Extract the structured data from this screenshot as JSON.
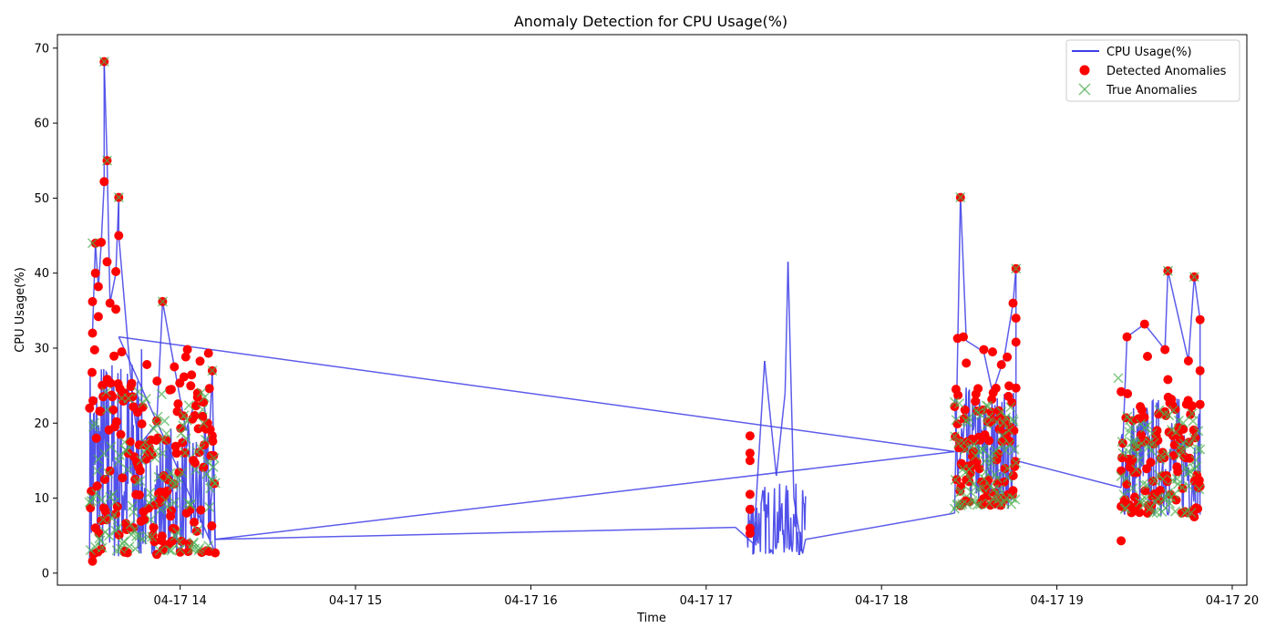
{
  "chart_data": {
    "type": "line",
    "title": "Anomaly Detection for CPU Usage(%)",
    "xlabel": "Time",
    "ylabel": "CPU Usage(%)",
    "xlim": [
      "2024-04-17 13:18",
      "2024-04-17 20:05"
    ],
    "ylim": [
      -1.6,
      71.8
    ],
    "x_ticks": [
      "04-17 14",
      "04-17 15",
      "04-17 16",
      "04-17 17",
      "04-17 18",
      "04-17 19",
      "04-17 20"
    ],
    "x_tick_times": [
      "2024-04-17 14:00",
      "2024-04-17 15:00",
      "2024-04-17 16:00",
      "2024-04-17 17:00",
      "2024-04-17 18:00",
      "2024-04-17 19:00",
      "2024-04-17 20:00"
    ],
    "y_ticks": [
      0,
      10,
      20,
      30,
      40,
      50,
      60,
      70
    ],
    "grid": false,
    "legend_position": "top-right",
    "legend": [
      "CPU Usage(%)",
      "Detected Anomalies",
      "True Anomalies"
    ],
    "colors": {
      "line": "#3f3fe8",
      "detected": "#ff0000",
      "true_marker": "#4caf50"
    },
    "series": [
      {
        "name": "CPU Usage(%)",
        "style": "line",
        "points": [
          [
            "2024-04-17 13:30",
            32.0
          ],
          [
            "2024-04-17 13:31",
            44.0
          ],
          [
            "2024-04-17 13:32",
            38.0
          ],
          [
            "2024-04-17 13:33",
            44.0
          ],
          [
            "2024-04-17 13:34",
            52.0
          ],
          [
            "2024-04-17 13:34",
            68.2
          ],
          [
            "2024-04-17 13:35",
            55.0
          ],
          [
            "2024-04-17 13:36",
            36.0
          ],
          [
            "2024-04-17 13:38",
            40.0
          ],
          [
            "2024-04-17 13:39",
            50.0
          ],
          [
            "2024-04-17 13:39",
            45.0
          ],
          [
            "2024-04-17 13:44",
            22.0
          ],
          [
            "2024-04-17 13:46",
            17.0
          ],
          [
            "2024-04-17 13:52",
            20.0
          ],
          [
            "2024-04-17 13:54",
            36.2
          ],
          [
            "2024-04-17 13:58",
            27.5
          ],
          [
            "2024-04-17 14:02",
            19.0
          ],
          [
            "2024-04-17 14:06",
            24.0
          ],
          [
            "2024-04-17 14:08",
            22.8
          ],
          [
            "2024-04-17 14:10",
            18.2
          ],
          [
            "2024-04-17 14:11",
            27.0
          ],
          [
            "2024-04-17 14:12",
            2.8
          ],
          [
            "2024-04-17 13:39",
            31.5
          ],
          [
            "2024-04-17 18:25",
            16.2
          ],
          [
            "2024-04-17 14:12",
            4.5
          ],
          [
            "2024-04-17 17:10",
            6.1
          ],
          [
            "2024-04-17 17:16",
            4.0
          ],
          [
            "2024-04-17 17:16",
            2.5
          ],
          [
            "2024-04-17 17:20",
            28.3
          ],
          [
            "2024-04-17 17:24",
            13.0
          ],
          [
            "2024-04-17 17:27",
            24.0
          ],
          [
            "2024-04-17 17:28",
            41.5
          ],
          [
            "2024-04-17 17:30",
            10.0
          ],
          [
            "2024-04-17 17:33",
            2.6
          ],
          [
            "2024-04-17 17:34",
            4.5
          ],
          [
            "2024-04-17 18:25",
            8.0
          ],
          [
            "2024-04-17 18:27",
            50.2
          ],
          [
            "2024-04-17 18:29",
            31.0
          ],
          [
            "2024-04-17 18:35",
            29.5
          ],
          [
            "2024-04-17 18:38",
            24.0
          ],
          [
            "2024-04-17 18:42",
            28.8
          ],
          [
            "2024-04-17 18:45",
            36.0
          ],
          [
            "2024-04-17 18:46",
            40.6
          ],
          [
            "2024-04-17 18:46",
            15.0
          ],
          [
            "2024-04-17 19:22",
            11.4
          ],
          [
            "2024-04-17 19:24",
            31.5
          ],
          [
            "2024-04-17 19:30",
            33.2
          ],
          [
            "2024-04-17 19:37",
            29.8
          ],
          [
            "2024-04-17 19:38",
            40.3
          ],
          [
            "2024-04-17 19:45",
            28.3
          ],
          [
            "2024-04-17 19:47",
            39.5
          ],
          [
            "2024-04-17 19:49",
            33.8
          ],
          [
            "2024-04-17 19:49",
            10.5
          ]
        ],
        "dense_segments": [
          {
            "start": "2024-04-17 13:29",
            "end": "2024-04-17 13:47",
            "low": 1.6,
            "high": 30,
            "samples": 90
          },
          {
            "start": "2024-04-17 13:47",
            "end": "2024-04-17 14:12",
            "low": 2.5,
            "high": 20,
            "samples": 90
          },
          {
            "start": "2024-04-17 17:14",
            "end": "2024-04-17 17:34",
            "low": 2.5,
            "high": 12,
            "samples": 80
          },
          {
            "start": "2024-04-17 18:25",
            "end": "2024-04-17 18:46",
            "low": 8.5,
            "high": 25,
            "samples": 80
          },
          {
            "start": "2024-04-17 19:22",
            "end": "2024-04-17 19:49",
            "low": 7.5,
            "high": 24,
            "samples": 90
          }
        ]
      },
      {
        "name": "Detected Anomalies",
        "style": "scatter",
        "points": [
          [
            "2024-04-17 13:30",
            32.0
          ],
          [
            "2024-04-17 13:30",
            36.2
          ],
          [
            "2024-04-17 13:31",
            44.0
          ],
          [
            "2024-04-17 13:31",
            40.0
          ],
          [
            "2024-04-17 13:32",
            38.2
          ],
          [
            "2024-04-17 13:32",
            34.2
          ],
          [
            "2024-04-17 13:33",
            44.1
          ],
          [
            "2024-04-17 13:34",
            68.2
          ],
          [
            "2024-04-17 13:34",
            52.2
          ],
          [
            "2024-04-17 13:35",
            55.0
          ],
          [
            "2024-04-17 13:35",
            41.5
          ],
          [
            "2024-04-17 13:36",
            36.0
          ],
          [
            "2024-04-17 13:38",
            40.2
          ],
          [
            "2024-04-17 13:38",
            35.2
          ],
          [
            "2024-04-17 13:39",
            50.1
          ],
          [
            "2024-04-17 13:39",
            45.0
          ],
          [
            "2024-04-17 13:40",
            29.5
          ],
          [
            "2024-04-17 13:44",
            22.2
          ],
          [
            "2024-04-17 13:46",
            17.1
          ],
          [
            "2024-04-17 13:54",
            36.2
          ],
          [
            "2024-04-17 13:52",
            20.3
          ],
          [
            "2024-04-17 13:58",
            27.5
          ],
          [
            "2024-04-17 13:57",
            24.5
          ],
          [
            "2024-04-17 14:05",
            21.0
          ],
          [
            "2024-04-17 14:06",
            24.0
          ],
          [
            "2024-04-17 14:08",
            22.8
          ],
          [
            "2024-04-17 14:11",
            27.0
          ],
          [
            "2024-04-17 14:11",
            18.3
          ],
          [
            "2024-04-17 13:30",
            1.6
          ],
          [
            "2024-04-17 13:33",
            3.2
          ],
          [
            "2024-04-17 13:41",
            2.8
          ],
          [
            "2024-04-17 13:52",
            2.5
          ],
          [
            "2024-04-17 14:00",
            2.8
          ],
          [
            "2024-04-17 14:10",
            2.9
          ],
          [
            "2024-04-17 17:15",
            18.3
          ],
          [
            "2024-04-17 17:15",
            16.0
          ],
          [
            "2024-04-17 17:15",
            15.0
          ],
          [
            "2024-04-17 17:15",
            10.5
          ],
          [
            "2024-04-17 17:15",
            8.5
          ],
          [
            "2024-04-17 17:15",
            6.0
          ],
          [
            "2024-04-17 17:15",
            5.3
          ],
          [
            "2024-04-17 18:27",
            50.1
          ],
          [
            "2024-04-17 18:28",
            31.5
          ],
          [
            "2024-04-17 18:29",
            28.0
          ],
          [
            "2024-04-17 18:35",
            29.8
          ],
          [
            "2024-04-17 18:38",
            29.5
          ],
          [
            "2024-04-17 18:41",
            27.8
          ],
          [
            "2024-04-17 18:43",
            28.8
          ],
          [
            "2024-04-17 18:45",
            36.0
          ],
          [
            "2024-04-17 18:46",
            40.6
          ],
          [
            "2024-04-17 18:46",
            34.0
          ],
          [
            "2024-04-17 18:46",
            30.8
          ],
          [
            "2024-04-17 18:26",
            31.3
          ],
          [
            "2024-04-17 18:27",
            9.0
          ],
          [
            "2024-04-17 18:45",
            11.0
          ],
          [
            "2024-04-17 19:22",
            4.3
          ],
          [
            "2024-04-17 19:22",
            8.9
          ],
          [
            "2024-04-17 19:22",
            24.2
          ],
          [
            "2024-04-17 19:24",
            31.5
          ],
          [
            "2024-04-17 19:30",
            33.2
          ],
          [
            "2024-04-17 19:31",
            28.9
          ],
          [
            "2024-04-17 19:37",
            29.8
          ],
          [
            "2024-04-17 19:38",
            40.3
          ],
          [
            "2024-04-17 19:38",
            25.8
          ],
          [
            "2024-04-17 19:45",
            28.3
          ],
          [
            "2024-04-17 19:47",
            39.5
          ],
          [
            "2024-04-17 19:49",
            33.8
          ],
          [
            "2024-04-17 19:49",
            27.0
          ],
          [
            "2024-04-17 19:49",
            22.5
          ],
          [
            "2024-04-17 19:47",
            7.5
          ]
        ],
        "dense_segments": [
          {
            "start": "2024-04-17 13:29",
            "end": "2024-04-17 14:12",
            "low": 2.5,
            "high": 30,
            "samples": 150
          },
          {
            "start": "2024-04-17 18:25",
            "end": "2024-04-17 18:46",
            "low": 9,
            "high": 25,
            "samples": 90
          },
          {
            "start": "2024-04-17 19:22",
            "end": "2024-04-17 19:49",
            "low": 8,
            "high": 24,
            "samples": 100
          }
        ]
      },
      {
        "name": "True Anomalies",
        "style": "scatter",
        "points": [
          [
            "2024-04-17 13:30",
            44.0
          ],
          [
            "2024-04-17 13:34",
            68.2
          ],
          [
            "2024-04-17 13:35",
            55.0
          ],
          [
            "2024-04-17 13:39",
            50.1
          ],
          [
            "2024-04-17 13:54",
            36.2
          ],
          [
            "2024-04-17 14:11",
            27.0
          ],
          [
            "2024-04-17 18:27",
            50.1
          ],
          [
            "2024-04-17 18:46",
            40.6
          ],
          [
            "2024-04-17 18:25",
            22.8
          ],
          [
            "2024-04-17 18:25",
            8.6
          ],
          [
            "2024-04-17 19:21",
            26.0
          ],
          [
            "2024-04-17 19:38",
            40.3
          ],
          [
            "2024-04-17 19:47",
            39.5
          ]
        ],
        "dense_segments": [
          {
            "start": "2024-04-17 13:29",
            "end": "2024-04-17 14:12",
            "low": 3,
            "high": 25,
            "samples": 130
          },
          {
            "start": "2024-04-17 18:25",
            "end": "2024-04-17 18:46",
            "low": 9,
            "high": 23,
            "samples": 80
          },
          {
            "start": "2024-04-17 19:22",
            "end": "2024-04-17 19:49",
            "low": 8,
            "high": 22,
            "samples": 90
          }
        ]
      }
    ]
  }
}
